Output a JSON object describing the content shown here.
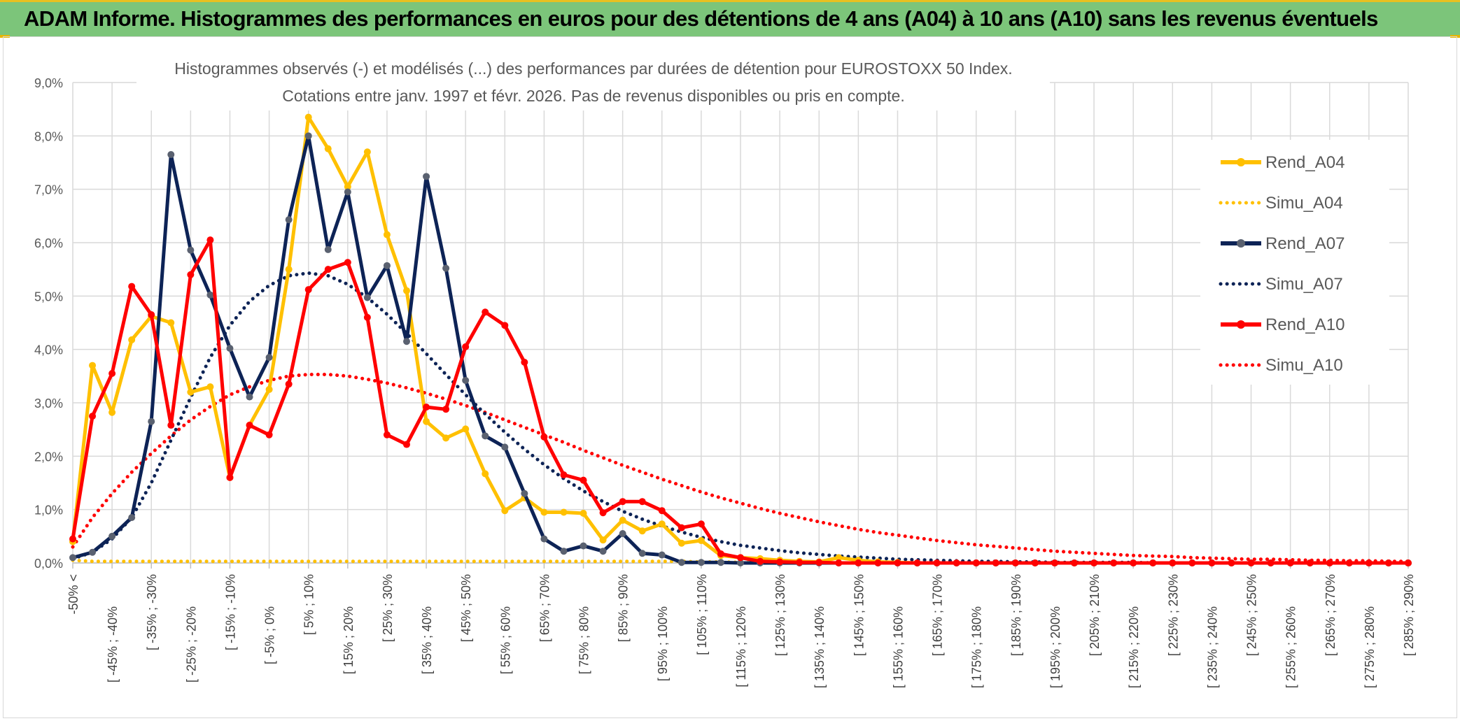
{
  "banner": {
    "title": "ADAM Informe. Histogrammes des performances en euros pour des détentions de 4 ans (A04) à 10 ans (A10) sans les revenus éventuels"
  },
  "chart_data": {
    "type": "line",
    "title_line1": "Histogrammes observés (-) et modélisés (...) des performances par durées de détention pour EUROSTOXX 50 Index.",
    "title_line2": "Cotations entre janv. 1997 et févr. 2026. Pas de revenus disponibles ou pris en compte.",
    "xlabel": "",
    "ylabel": "",
    "ylim": [
      0,
      9
    ],
    "y_ticks": [
      "0,0%",
      "1,0%",
      "2,0%",
      "3,0%",
      "4,0%",
      "5,0%",
      "6,0%",
      "7,0%",
      "8,0%",
      "9,0%"
    ],
    "grid": true,
    "legend_position": "right",
    "categories_count": 69,
    "x_tick_labels": [
      "-50% <",
      "[ -45% ; -40%",
      "[ -35% ; -30%",
      "[ -25% ; -20%",
      "[ -15% ; -10%",
      "[ -5% ; 0%",
      "[ 5% ; 10%",
      "[ 15% ; 20%",
      "[ 25% ; 30%",
      "[ 35% ; 40%",
      "[ 45% ; 50%",
      "[ 55% ; 60%",
      "[ 65% ; 70%",
      "[ 75% ; 80%",
      "[ 85% ; 90%",
      "[ 95% ; 100%",
      "[ 105% ; 110%",
      "[ 115% ; 120%",
      "[ 125% ; 130%",
      "[ 135% ; 140%",
      "[ 145% ; 150%",
      "[ 155% ; 160%",
      "[ 165% ; 170%",
      "[ 175% ; 180%",
      "[ 185% ; 190%",
      "[ 195% ; 200%",
      "[ 205% ; 210%",
      "[ 215% ; 220%",
      "[ 225% ; 230%",
      "[ 235% ; 240%",
      "[ 245% ; 250%",
      "[ 255% ; 260%",
      "[ 265% ; 270%",
      "[ 275% ; 280%",
      "[ 285% ; 290%"
    ],
    "series": [
      {
        "name": "Rend_A04",
        "color": "#ffc000",
        "style": "solid",
        "values": [
          0.4,
          3.7,
          2.82,
          4.18,
          4.62,
          4.5,
          3.2,
          3.3,
          1.6,
          2.58,
          3.25,
          5.5,
          8.35,
          7.76,
          7.05,
          7.7,
          6.15,
          5.1,
          2.65,
          2.34,
          2.51,
          1.67,
          0.98,
          1.22,
          0.95,
          0.95,
          0.93,
          0.43,
          0.8,
          0.6,
          0.73,
          0.37,
          0.42,
          0.14,
          0.1,
          0.08,
          0.05,
          0.03,
          0.02,
          0.1,
          0.05,
          0.02,
          0.01,
          0,
          0,
          0,
          0,
          0,
          0,
          0,
          0,
          0,
          0,
          0,
          0,
          0,
          0,
          0,
          0,
          0,
          0,
          0,
          0,
          0,
          0,
          0,
          0,
          0,
          0
        ]
      },
      {
        "name": "Simu_A04",
        "color": "#ffc000",
        "style": "dotted",
        "values": [
          0.05,
          0.03,
          0.03,
          0.03,
          0.03,
          0.03,
          0.03,
          0.03,
          0.03,
          0.03,
          0.03,
          0.03,
          0.03,
          0.03,
          0.03,
          0.03,
          0.03,
          0.03,
          0.03,
          0.03,
          0.03,
          0.03,
          0.03,
          0.03,
          0.03,
          0.03,
          0.03,
          0.03,
          0.03,
          0.03,
          0.03,
          0.03,
          0.02,
          0.02,
          0.01,
          0,
          0,
          0,
          0,
          0,
          0,
          0,
          0,
          0,
          0,
          0,
          0,
          0,
          0,
          0,
          0,
          0,
          0,
          0,
          0,
          0,
          0,
          0,
          0,
          0,
          0,
          0,
          0,
          0,
          0,
          0,
          0,
          0,
          0
        ]
      },
      {
        "name": "Rend_A07",
        "color": "#0d2356",
        "style": "solid",
        "values": [
          0.1,
          0.2,
          0.5,
          0.85,
          2.65,
          7.65,
          5.86,
          5.02,
          4.02,
          3.11,
          3.85,
          6.43,
          8.0,
          5.87,
          6.95,
          4.97,
          5.57,
          4.15,
          7.24,
          5.52,
          3.42,
          2.38,
          2.17,
          1.3,
          0.45,
          0.22,
          0.32,
          0.22,
          0.55,
          0.18,
          0.15,
          0.01,
          0.01,
          0.01,
          0,
          0,
          0,
          0,
          0,
          0,
          0,
          0,
          0,
          0,
          0,
          0,
          0,
          0,
          0,
          0,
          0,
          0,
          0,
          0,
          0,
          0,
          0,
          0,
          0,
          0,
          0,
          0,
          0,
          0,
          0,
          0,
          0,
          0,
          0
        ]
      },
      {
        "name": "Simu_A07",
        "color": "#0d2356",
        "style": "dotted",
        "values": [
          0.08,
          0.2,
          0.45,
          0.85,
          1.5,
          2.3,
          3.1,
          3.85,
          4.45,
          4.9,
          5.2,
          5.38,
          5.43,
          5.38,
          5.22,
          4.97,
          4.66,
          4.3,
          3.92,
          3.53,
          3.15,
          2.79,
          2.45,
          2.13,
          1.84,
          1.58,
          1.35,
          1.15,
          0.97,
          0.82,
          0.69,
          0.58,
          0.48,
          0.4,
          0.33,
          0.28,
          0.23,
          0.19,
          0.16,
          0.13,
          0.11,
          0.09,
          0.07,
          0.06,
          0.05,
          0.04,
          0.03,
          0.03,
          0.02,
          0.02,
          0.01,
          0.01,
          0.01,
          0.01,
          0.01,
          0,
          0,
          0,
          0,
          0,
          0,
          0,
          0,
          0,
          0,
          0,
          0,
          0,
          0
        ]
      },
      {
        "name": "Rend_A10",
        "color": "#ff0000",
        "style": "solid",
        "values": [
          0.45,
          2.75,
          3.55,
          5.18,
          4.65,
          2.58,
          5.4,
          6.05,
          1.6,
          2.58,
          2.4,
          3.35,
          5.12,
          5.5,
          5.63,
          4.6,
          2.4,
          2.22,
          2.92,
          2.88,
          4.05,
          4.7,
          4.45,
          3.76,
          2.36,
          1.65,
          1.55,
          0.94,
          1.15,
          1.15,
          0.98,
          0.66,
          0.73,
          0.17,
          0.1,
          0.03,
          0.02,
          0.01,
          0.01,
          0,
          0,
          0,
          0,
          0,
          0,
          0,
          0,
          0,
          0,
          0,
          0,
          0,
          0,
          0,
          0,
          0,
          0,
          0,
          0,
          0,
          0,
          0,
          0,
          0,
          0,
          0,
          0,
          0,
          0
        ]
      },
      {
        "name": "Simu_A10",
        "color": "#ff0000",
        "style": "dotted",
        "values": [
          0.3,
          0.85,
          1.3,
          1.7,
          2.05,
          2.38,
          2.68,
          2.93,
          3.15,
          3.3,
          3.42,
          3.5,
          3.53,
          3.53,
          3.5,
          3.44,
          3.37,
          3.28,
          3.18,
          3.07,
          2.95,
          2.82,
          2.68,
          2.54,
          2.4,
          2.26,
          2.11,
          1.97,
          1.83,
          1.7,
          1.57,
          1.45,
          1.33,
          1.22,
          1.12,
          1.02,
          0.93,
          0.85,
          0.77,
          0.7,
          0.63,
          0.57,
          0.52,
          0.47,
          0.42,
          0.38,
          0.34,
          0.31,
          0.28,
          0.25,
          0.22,
          0.2,
          0.18,
          0.16,
          0.14,
          0.13,
          0.12,
          0.1,
          0.09,
          0.08,
          0.07,
          0.07,
          0.06,
          0.05,
          0.05,
          0.04,
          0.04,
          0.03,
          0.03
        ]
      }
    ]
  }
}
